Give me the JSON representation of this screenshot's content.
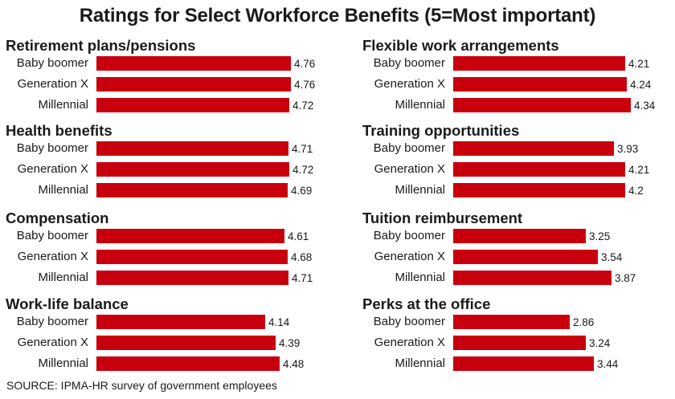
{
  "chart_data": {
    "type": "bar",
    "title": "Ratings for Select Workforce Benefits (5=Most important)",
    "source": "SOURCE: IPMA-HR survey of government employees",
    "categories": [
      "Baby boomer",
      "Generation X",
      "Millennial"
    ],
    "panels": [
      {
        "title": "Retirement plans/pensions",
        "values": [
          4.76,
          4.76,
          4.72
        ],
        "labels": [
          "4.76",
          "4.76",
          "4.72"
        ]
      },
      {
        "title": "Health benefits",
        "values": [
          4.71,
          4.72,
          4.69
        ],
        "labels": [
          "4.71",
          "4.72",
          "4.69"
        ]
      },
      {
        "title": "Compensation",
        "values": [
          4.61,
          4.68,
          4.71
        ],
        "labels": [
          "4.61",
          "4.68",
          "4.71"
        ]
      },
      {
        "title": "Work-life balance",
        "values": [
          4.14,
          4.39,
          4.48
        ],
        "labels": [
          "4.14",
          "4.39",
          "4.48"
        ]
      },
      {
        "title": "Flexible work arrangements",
        "values": [
          4.21,
          4.24,
          4.34
        ],
        "labels": [
          "4.21",
          "4.24",
          "4.34"
        ]
      },
      {
        "title": "Training opportunities",
        "values": [
          3.93,
          4.21,
          4.2
        ],
        "labels": [
          "3.93",
          "4.21",
          "4.2"
        ]
      },
      {
        "title": "Tuition reimbursement",
        "values": [
          3.25,
          3.54,
          3.87
        ],
        "labels": [
          "3.25",
          "3.54",
          "3.87"
        ]
      },
      {
        "title": "Perks at the office",
        "values": [
          2.86,
          3.24,
          3.44
        ],
        "labels": [
          "2.86",
          "3.24",
          "3.44"
        ]
      }
    ],
    "bar_color": "#c8000e",
    "xlim": [
      0,
      4.76
    ],
    "grid": false
  }
}
